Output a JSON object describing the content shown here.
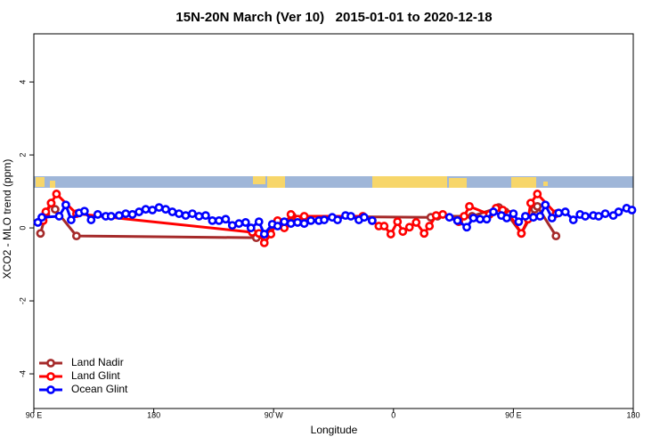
{
  "chart_data": {
    "type": "line",
    "title": "15N-20N March (Ver 10)   2015-01-01 to 2020-12-18",
    "x_label": "Longitude",
    "y_label": "XCO2 - MLO trend (ppm)",
    "xlim": [
      90,
      540
    ],
    "xticks": [
      {
        "value": 90,
        "label": "90 E"
      },
      180,
      {
        "value": 270,
        "label": "90 W"
      },
      {
        "value": 360,
        "label": "0"
      },
      {
        "value": 450,
        "label": "90 E"
      },
      {
        "value": 540,
        "label": "180"
      }
    ],
    "ylim": [
      -4.95,
      5.32
    ],
    "yticks": [
      -4,
      -2,
      0,
      2,
      4
    ],
    "legend": "bottom-left",
    "series": [
      {
        "name": "Land Nadir",
        "color": "#a52a2a",
        "x": [
          95,
          99,
          103,
          106,
          122,
          257,
          284,
          388,
          393,
          419,
          439,
          444,
          456,
          466,
          468,
          482
        ],
        "values": [
          -0.15,
          0.37,
          0.68,
          0.51,
          -0.22,
          -0.27,
          0.32,
          0.29,
          0.32,
          0.32,
          0.56,
          0.44,
          -0.15,
          0.51,
          0.59,
          -0.22
        ]
      },
      {
        "name": "Land Glint",
        "color": "#ff0000",
        "x": [
          97,
          99,
          103,
          107,
          122,
          254,
          259,
          263,
          268,
          273,
          278,
          283,
          288,
          293,
          337,
          344,
          349,
          353,
          358,
          363,
          367,
          372,
          377,
          383,
          387,
          392,
          397,
          409,
          413,
          417,
          432,
          437,
          442,
          447,
          456,
          461,
          463,
          468,
          482
        ],
        "values": [
          0.2,
          0.44,
          0.68,
          0.93,
          0.39,
          -0.12,
          -0.15,
          -0.41,
          -0.17,
          0.2,
          0.0,
          0.37,
          0.24,
          0.32,
          0.32,
          0.2,
          0.05,
          0.05,
          -0.17,
          0.17,
          -0.1,
          0.02,
          0.15,
          -0.15,
          0.05,
          0.34,
          0.37,
          0.17,
          0.32,
          0.59,
          0.37,
          0.54,
          0.49,
          0.37,
          -0.15,
          0.24,
          0.68,
          0.93,
          0.39
        ]
      },
      {
        "name": "Ocean Glint",
        "color": "#0000ff",
        "x": [
          93,
          96,
          109,
          114,
          118,
          124,
          128,
          133,
          138,
          144,
          148,
          154,
          159,
          164,
          169,
          174,
          179,
          184,
          189,
          194,
          199,
          204,
          209,
          214,
          219,
          224,
          229,
          234,
          239,
          244,
          249,
          253,
          259,
          263,
          269,
          273,
          278,
          283,
          288,
          293,
          298,
          304,
          308,
          314,
          318,
          324,
          328,
          334,
          338,
          344,
          380,
          402,
          408,
          415,
          420,
          425,
          430,
          435,
          441,
          445,
          450,
          454,
          459,
          465,
          470,
          474,
          479,
          484,
          489,
          495,
          500,
          504,
          510,
          514,
          519,
          525,
          529,
          535,
          539
        ],
        "values": [
          0.15,
          0.29,
          0.32,
          0.63,
          0.22,
          0.41,
          0.46,
          0.22,
          0.37,
          0.32,
          0.32,
          0.34,
          0.39,
          0.37,
          0.44,
          0.51,
          0.49,
          0.56,
          0.51,
          0.44,
          0.39,
          0.34,
          0.39,
          0.32,
          0.34,
          0.2,
          0.2,
          0.24,
          0.07,
          0.12,
          0.15,
          0.0,
          0.17,
          -0.17,
          0.1,
          0.05,
          0.17,
          0.12,
          0.15,
          0.12,
          0.2,
          0.2,
          0.22,
          0.29,
          0.22,
          0.34,
          0.32,
          0.22,
          0.29,
          0.2,
          null,
          0.29,
          0.2,
          0.02,
          0.27,
          0.24,
          0.24,
          0.44,
          0.34,
          0.27,
          0.39,
          0.17,
          0.32,
          0.29,
          0.32,
          0.63,
          0.27,
          0.41,
          0.44,
          0.22,
          0.37,
          0.32,
          0.34,
          0.32,
          0.39,
          0.34,
          0.44,
          0.54,
          0.49
        ]
      }
    ]
  }
}
